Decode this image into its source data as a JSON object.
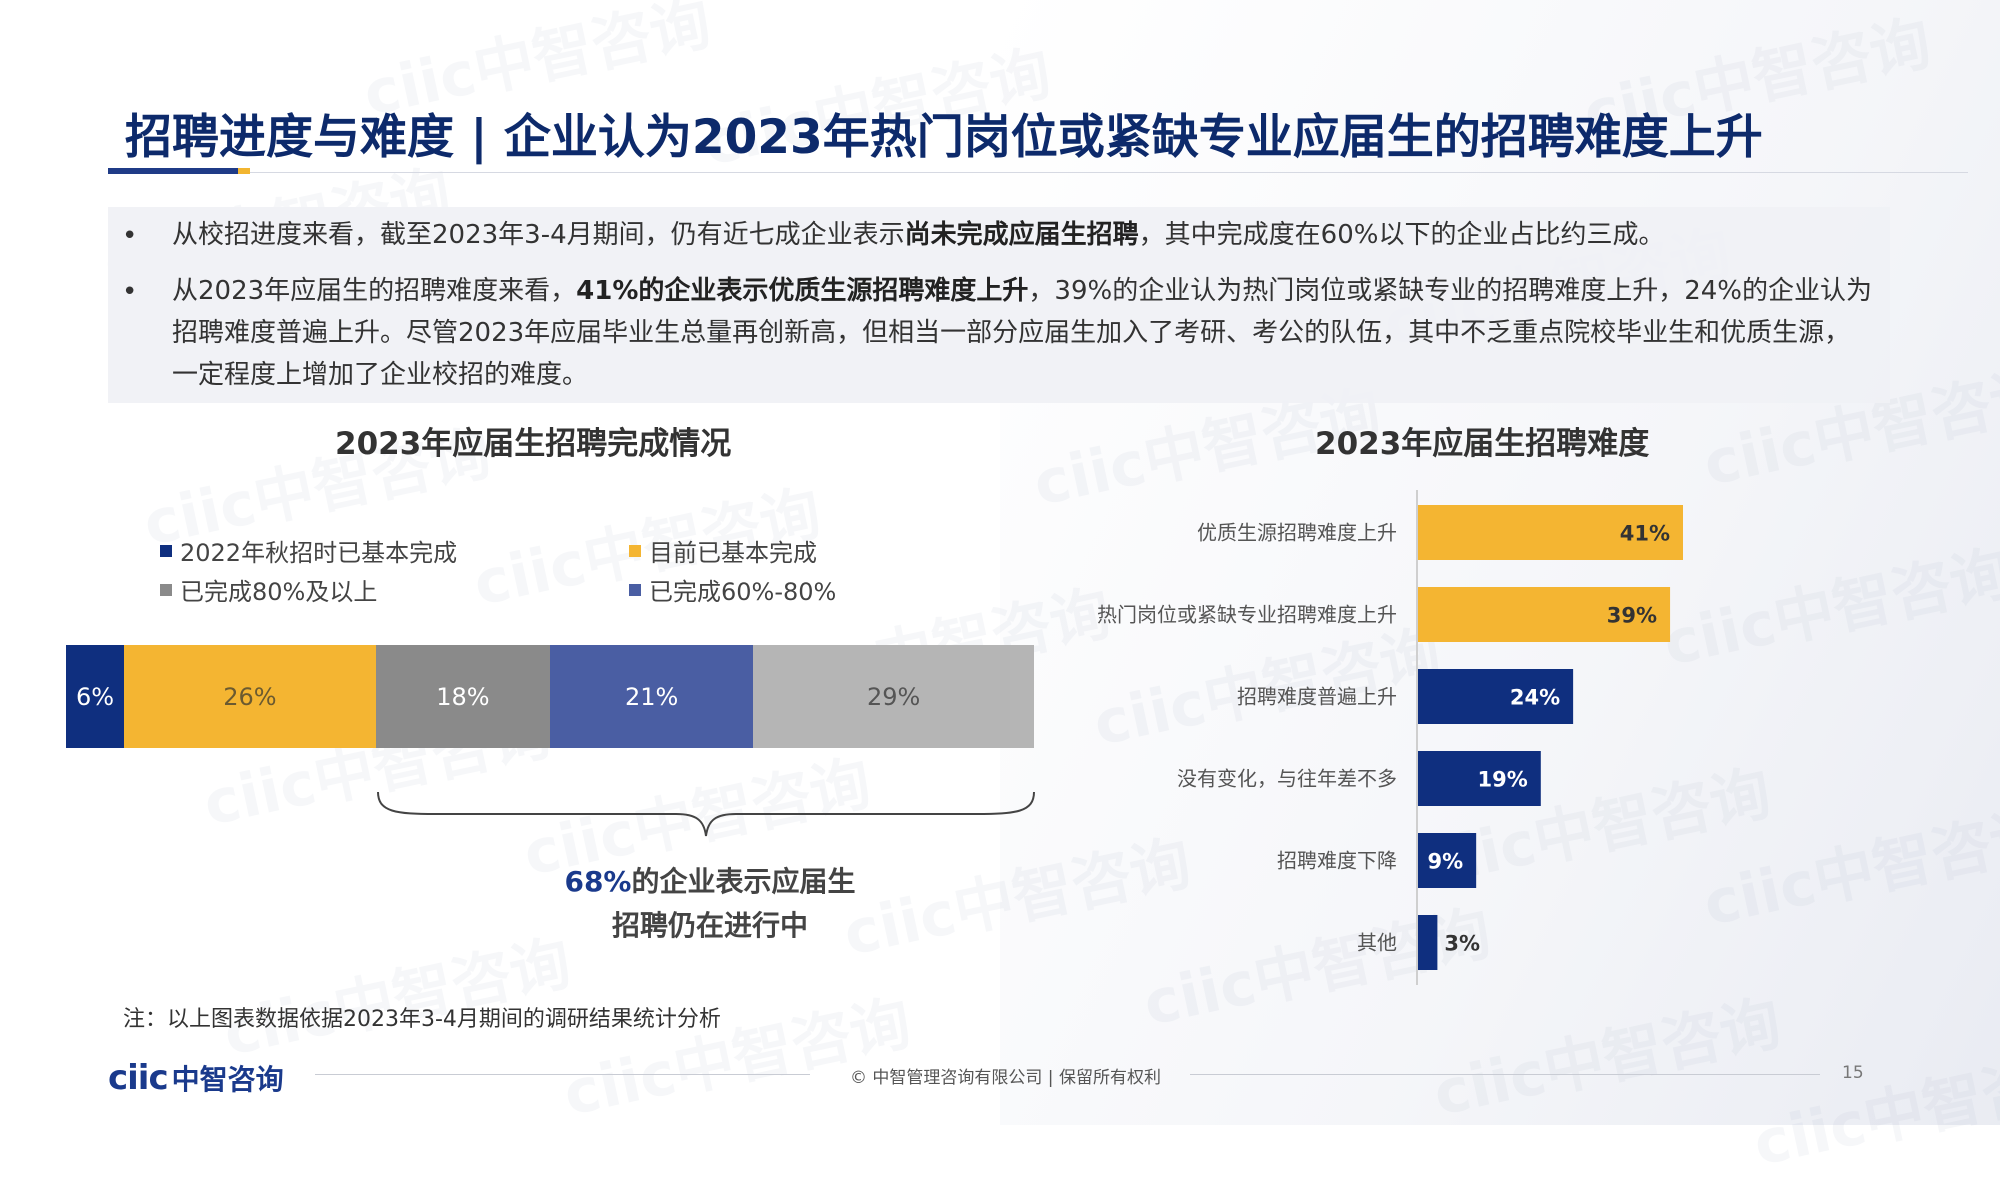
{
  "title": "招聘进度与难度 | 企业认为2023年热门岗位或紧缺专业应届生的招聘难度上升",
  "bullets": [
    {
      "parts": [
        {
          "text": "从校招进度来看，截至2023年3-4月期间，仍有近七成企业表示",
          "bold": false
        },
        {
          "text": "尚未完成应届生招聘",
          "bold": true
        },
        {
          "text": "，其中完成度在60%以下的企业占比约三成。",
          "bold": false
        }
      ]
    },
    {
      "parts": [
        {
          "text": "从2023年应届生的招聘难度来看，",
          "bold": false
        },
        {
          "text": "41%的企业表示优质生源招聘难度上升",
          "bold": true
        },
        {
          "text": "，39%的企业认为热门岗位或紧缺专业的招聘难度上升，24%的企业认为招聘难度普遍上升。尽管2023年应届毕业生总量再创新高，但相当一部分应届生加入了考研、考公的队伍，其中不乏重点院校毕业生和优质生源，一定程度上增加了企业校招的难度。",
          "bold": false
        }
      ]
    }
  ],
  "bullet_marker": "•",
  "chart_data": [
    {
      "type": "bar",
      "orientation": "horizontal-stacked",
      "title": "2023年应届生招聘完成情况",
      "series": [
        {
          "name": "2022年秋招时已基本完成",
          "value": 6,
          "label": "6%",
          "color": "#0f2f7f",
          "text_color": "#ffffff"
        },
        {
          "name": "目前已基本完成",
          "value": 26,
          "label": "26%",
          "color": "#f4b532",
          "text_color": "#6b5a30"
        },
        {
          "name": "已完成80%及以上",
          "value": 18,
          "label": "18%",
          "color": "#8a8a8a",
          "text_color": "#ffffff"
        },
        {
          "name": "已完成60%-80%",
          "value": 21,
          "label": "21%",
          "color": "#4a5ea3",
          "text_color": "#ffffff"
        },
        {
          "name": "",
          "value": 29,
          "label": "29%",
          "color": "#b5b5b5",
          "text_color": "#555555"
        }
      ],
      "legend_placement": "top"
    },
    {
      "type": "bar",
      "orientation": "horizontal",
      "title": "2023年应届生招聘难度",
      "categories": [
        "优质生源招聘难度上升",
        "热门岗位或紧缺专业招聘难度上升",
        "招聘难度普遍上升",
        "没有变化，与往年差不多",
        "招聘难度下降",
        "其他"
      ],
      "values": [
        41,
        39,
        24,
        19,
        9,
        3
      ],
      "labels": [
        "41%",
        "39%",
        "24%",
        "19%",
        "9%",
        "3%"
      ],
      "colors": [
        "#f4b532",
        "#f4b532",
        "#0f2f7f",
        "#0f2f7f",
        "#0f2f7f",
        "#0f2f7f"
      ],
      "label_colors": [
        "#333333",
        "#333333",
        "#ffffff",
        "#ffffff",
        "#ffffff",
        "#333333"
      ]
    }
  ],
  "annotation": {
    "highlight": "68%",
    "rest_line1": "的企业表示应届生",
    "line2": "招聘仍在进行中"
  },
  "footnote": "注：以上图表数据依据2023年3-4月期间的调研结果统计分析",
  "footer": {
    "logo_text": "ciic",
    "logo_cn": "中智咨询",
    "copyright": "© 中智管理咨询有限公司 | 保留所有权利",
    "page": "15"
  },
  "watermark": "ciic中智咨询"
}
